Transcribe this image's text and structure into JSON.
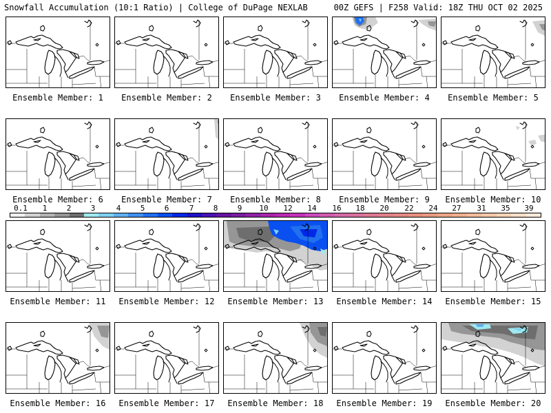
{
  "header": {
    "left": "Snowfall Accumulation (10:1 Ratio) | College of DuPage NEXLAB",
    "right": "00Z GEFS | F258 Valid: 18Z THU OCT 02 2025"
  },
  "legend": {
    "ticks": [
      "0.1",
      "1",
      "2",
      "3",
      "4",
      "5",
      "6",
      "7",
      "8",
      "9",
      "10",
      "12",
      "14",
      "16",
      "18",
      "20",
      "22",
      "24",
      "27",
      "31",
      "35",
      "39"
    ],
    "colors": [
      "#f0f0f0",
      "#d2d2d2",
      "#b4b4b4",
      "#969696",
      "#6e6e6e",
      "#a0e8f0",
      "#80d0f0",
      "#60b0f0",
      "#4090f0",
      "#2070f0",
      "#0a50f0",
      "#0028e6",
      "#2010c8",
      "#4a12b4",
      "#6414a0",
      "#7a1ea0",
      "#9022a6",
      "#a826aa",
      "#b82ab0",
      "#c432b8",
      "#ca4aba",
      "#d05cb0",
      "#d46aa6",
      "#d8709c",
      "#dc7892",
      "#e0808a",
      "#e28884",
      "#e4907e",
      "#e89a82",
      "#eca488",
      "#f0b090",
      "#f2bc9c",
      "#f6c8a8",
      "#f8d4b8",
      "#fae0c8",
      "#fceada"
    ]
  },
  "panels": [
    {
      "label": "Ensemble Member: 1"
    },
    {
      "label": "Ensemble Member: 2"
    },
    {
      "label": "Ensemble Member: 3"
    },
    {
      "label": "Ensemble Member: 4",
      "snow": true
    },
    {
      "label": "Ensemble Member: 5",
      "snow": true
    },
    {
      "label": "Ensemble Member: 6"
    },
    {
      "label": "Ensemble Member: 7",
      "snow": true
    },
    {
      "label": "Ensemble Member: 8"
    },
    {
      "label": "Ensemble Member: 9"
    },
    {
      "label": "Ensemble Member: 10",
      "snow": true
    },
    {
      "label": "Ensemble Member: 11"
    },
    {
      "label": "Ensemble Member: 12"
    },
    {
      "label": "Ensemble Member: 13",
      "snow": true
    },
    {
      "label": "Ensemble Member: 14"
    },
    {
      "label": "Ensemble Member: 15"
    },
    {
      "label": "Ensemble Member: 16",
      "snow": true
    },
    {
      "label": "Ensemble Member: 17"
    },
    {
      "label": "Ensemble Member: 18",
      "snow": true
    },
    {
      "label": "Ensemble Member: 19"
    },
    {
      "label": "Ensemble Member: 20",
      "snow": true
    }
  ]
}
